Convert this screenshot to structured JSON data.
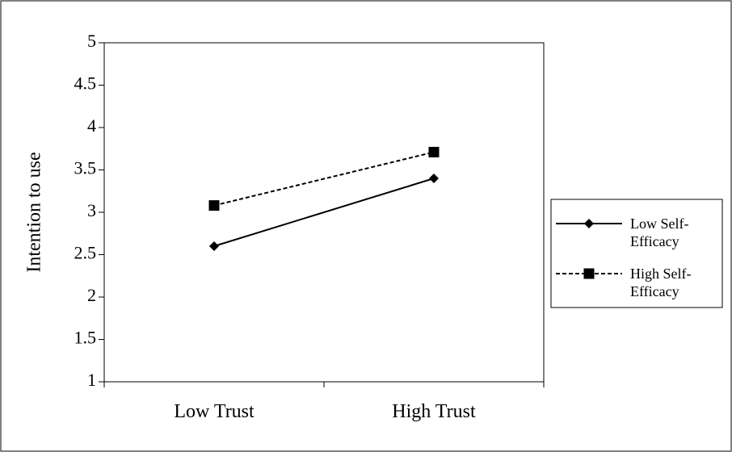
{
  "chart_data": {
    "type": "line",
    "title": "",
    "xlabel": "",
    "ylabel": "Intention to use",
    "categories": [
      "Low Trust",
      "High Trust"
    ],
    "ylim": [
      1,
      5
    ],
    "yticks": [
      "1",
      "1.5",
      "2",
      "2.5",
      "3",
      "3.5",
      "4",
      "4.5",
      "5"
    ],
    "grid": false,
    "legend_position": "right",
    "series": [
      {
        "name_line1": "Low Self-",
        "name_line2": "Efficacy",
        "values": [
          2.6,
          3.4
        ],
        "marker": "diamond",
        "line_style": "solid",
        "color": "#000000"
      },
      {
        "name_line1": "High Self-",
        "name_line2": "Efficacy",
        "values": [
          3.08,
          3.71
        ],
        "marker": "square",
        "line_style": "dashed",
        "color": "#000000"
      }
    ]
  }
}
